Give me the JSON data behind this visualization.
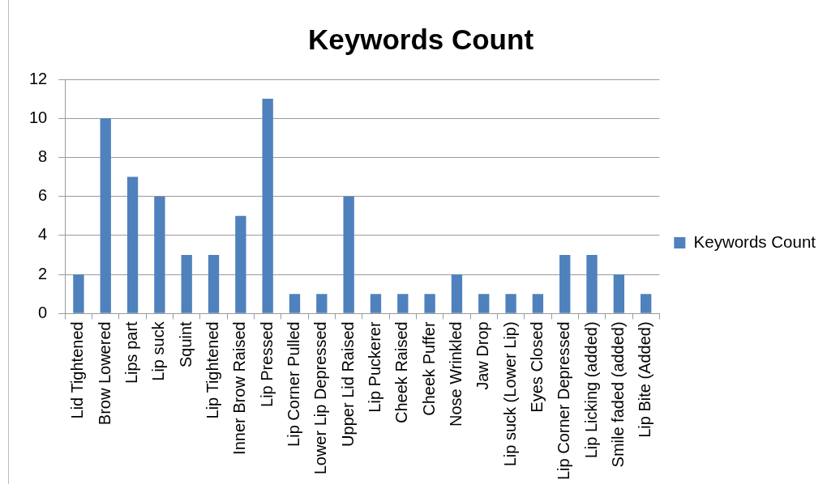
{
  "chart_data": {
    "type": "bar",
    "title": "Keywords Count",
    "categories": [
      "Lid Tightened",
      "Brow Lowered",
      "Lips part",
      "Lip suck",
      "Squint",
      "Lip Tightened",
      "Inner Brow Raised",
      "Lip Pressed",
      "Lip Corner Pulled",
      "Lower Lip Depressed",
      "Upper Lid Raised",
      "Lip Puckerer",
      "Cheek Raised",
      "Cheek Puffer",
      "Nose Wrinkled",
      "Jaw Drop",
      "Lip suck (Lower Lip)",
      "Eyes Closed",
      "Lip Corner Depressed",
      "Lip Licking (added)",
      "Smile faded (added)",
      "Lip Bite (Added)"
    ],
    "series": [
      {
        "name": "Keywords Count",
        "color": "#4f81bd",
        "values": [
          2,
          10,
          7,
          6,
          3,
          3,
          5,
          11,
          1,
          1,
          6,
          1,
          1,
          1,
          2,
          1,
          1,
          1,
          3,
          3,
          2,
          1
        ]
      }
    ],
    "ylim": [
      0,
      12
    ],
    "yticks": [
      0,
      2,
      4,
      6,
      8,
      10,
      12
    ],
    "grid": "y",
    "legend": "right"
  }
}
